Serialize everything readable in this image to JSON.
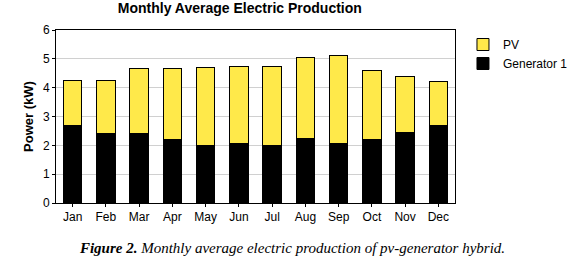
{
  "chart_data": {
    "type": "bar",
    "title": "Monthly Average Electric Production",
    "y_label": "Power (kW)",
    "caption": {
      "label": "Figure 2.",
      "text": "Monthly average electric production of pv-generator hybrid."
    },
    "categories": [
      "Jan",
      "Feb",
      "Mar",
      "Apr",
      "May",
      "Jun",
      "Jul",
      "Aug",
      "Sep",
      "Oct",
      "Nov",
      "Dec"
    ],
    "series": [
      {
        "name": "Generator 1",
        "color": "#000000",
        "values": [
          2.7,
          2.4,
          2.4,
          2.2,
          2.0,
          2.05,
          2.0,
          2.25,
          2.05,
          2.2,
          2.45,
          2.7
        ]
      },
      {
        "name": "PV",
        "color": "#ffe94a",
        "values": [
          1.55,
          1.85,
          2.25,
          2.45,
          2.7,
          2.7,
          2.75,
          2.8,
          3.05,
          2.4,
          1.95,
          1.5
        ]
      }
    ],
    "stacked": true,
    "ylim": [
      0,
      6
    ],
    "yticks": [
      0,
      1,
      2,
      3,
      4,
      5,
      6
    ],
    "grid": true,
    "legend": "top right"
  }
}
